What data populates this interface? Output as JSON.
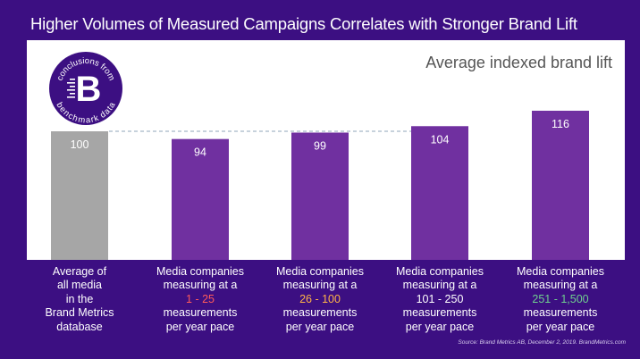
{
  "title": "Higher Volumes of Measured Campaigns Correlates with Stronger Brand Lift",
  "badge": {
    "text_top": "conclusions from",
    "text_bottom": "benchmark data",
    "letter": "B"
  },
  "colors": {
    "background": "#3c0f82",
    "bar_purple": "#7030a0",
    "bar_gray": "#a6a6a6",
    "reference_line": "#8fa5b8",
    "highlight_red": "#ff5a5a",
    "highlight_orange": "#ffb347",
    "highlight_green": "#6fcf8f"
  },
  "categories_text": [
    {
      "lines": [
        "Average of",
        "all media",
        "in the",
        "Brand Metrics",
        "database"
      ],
      "highlight_line": -1,
      "highlight_color": ""
    },
    {
      "lines": [
        "Media companies",
        "measuring at a",
        "1 - 25",
        "measurements",
        "per year pace"
      ],
      "highlight_line": 2,
      "highlight_color": "#ff5a5a"
    },
    {
      "lines": [
        "Media companies",
        "measuring at a",
        "26 - 100",
        "measurements",
        "per year pace"
      ],
      "highlight_line": 2,
      "highlight_color": "#ffb347"
    },
    {
      "lines": [
        "Media companies",
        "measuring at a",
        "101 - 250",
        "measurements",
        "per year pace"
      ],
      "highlight_line": -1,
      "highlight_color": ""
    },
    {
      "lines": [
        "Media companies",
        "measuring at a",
        "251 - 1,500",
        "measurements",
        "per year pace"
      ],
      "highlight_line": 2,
      "highlight_color": "#6fcf8f"
    }
  ],
  "chart_data": {
    "type": "bar",
    "title": "Higher Volumes of Measured Campaigns Correlates with Stronger Brand Lift",
    "subtitle": "Average indexed brand lift",
    "categories": [
      "Average of all media in the Brand Metrics database",
      "Media companies measuring at a 1 - 25 measurements per year pace",
      "Media companies measuring at a 26 - 100 measurements per year pace",
      "Media companies measuring at a 101 - 250 measurements per year pace",
      "Media companies measuring at a 251 - 1,500 measurements per year pace"
    ],
    "values": [
      100,
      94,
      99,
      104,
      116
    ],
    "value_labels": [
      "100",
      "94",
      "99",
      "104",
      "116"
    ],
    "bar_colors": [
      "#a6a6a6",
      "#7030a0",
      "#7030a0",
      "#7030a0",
      "#7030a0"
    ],
    "reference_line": 100,
    "ylim": [
      0,
      116
    ],
    "grid": false,
    "xlabel": "",
    "ylabel": ""
  },
  "source": "Source: Brand Metrics AB, December 2, 2019. BrandMetrics.com"
}
